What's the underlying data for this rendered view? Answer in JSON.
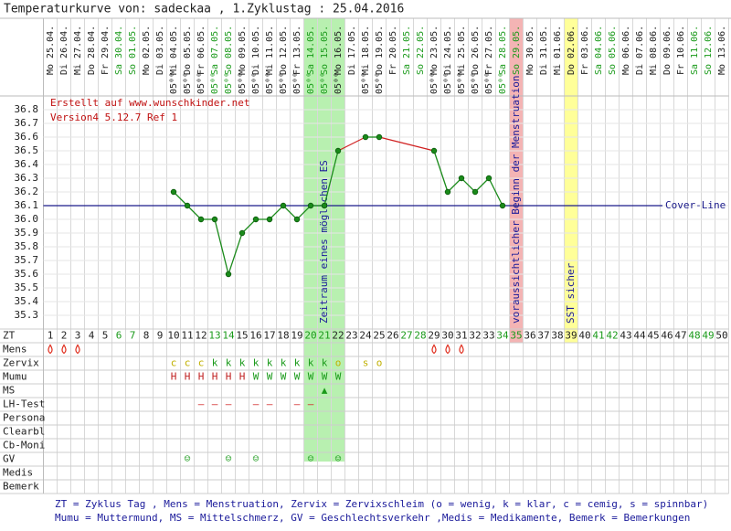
{
  "header": {
    "title": "Temperaturkurve von: sadeckaa , 1.Zyklustag : 25.04.2016"
  },
  "notes": [
    "Erstellt auf www.wunschkinder.net",
    "Version4 5.12.7 Ref 1"
  ],
  "chart_data": {
    "type": "line",
    "categories": [
      1,
      2,
      3,
      4,
      5,
      6,
      7,
      8,
      9,
      10,
      11,
      12,
      13,
      14,
      15,
      16,
      17,
      18,
      19,
      20,
      21,
      22,
      23,
      24,
      25,
      26,
      27,
      28,
      29,
      30,
      31,
      32,
      33,
      34,
      35,
      36,
      37,
      38,
      39,
      40,
      41,
      42,
      43,
      44,
      45,
      46,
      47,
      48,
      49,
      50
    ],
    "dates": [
      "Mo 25.04.",
      "Di 26.04.",
      "Mi 27.04.",
      "Do 28.04.",
      "Fr 29.04.",
      "Sa 30.04.",
      "So 01.05.",
      "Mo 02.05.",
      "Di 03.05.",
      "Mi 04.05.",
      "Do 05.05.",
      "Fr 06.05.",
      "Sa 07.05.",
      "So 08.05.",
      "Mo 09.05.",
      "Di 10.05.",
      "Mi 11.05.",
      "Do 12.05.",
      "Fr 13.05.",
      "Sa 14.05.",
      "So 15.05.",
      "Mo 16.05.",
      "Di 17.05.",
      "Mi 18.05.",
      "Do 19.05.",
      "Fr 20.05.",
      "Sa 21.05.",
      "So 22.05.",
      "Mo 23.05.",
      "Di 24.05.",
      "Mi 25.05.",
      "Do 26.05.",
      "Fr 27.05.",
      "Sa 28.05.",
      "So 29.05.",
      "Mo 30.05.",
      "Di 31.05.",
      "Mi 01.06.",
      "Do 02.06.",
      "Fr 03.06.",
      "Sa 04.06.",
      "So 05.06.",
      "Mo 06.06.",
      "Di 07.06.",
      "Mi 08.06.",
      "Do 09.06.",
      "Fr 10.06.",
      "Sa 11.06.",
      "So 12.06.",
      "Mo 13.06."
    ],
    "times": [
      null,
      null,
      null,
      null,
      null,
      null,
      null,
      null,
      null,
      "05⁰⁰",
      "05⁰⁰",
      "05⁰⁰",
      "05⁰⁰",
      "05⁰⁰",
      "05⁰⁰",
      "05⁰⁰",
      "05⁰⁰",
      "05⁰⁰",
      "05⁰⁰",
      "05⁰⁰",
      "05⁰⁰",
      "05⁰⁰",
      null,
      "05⁰⁰",
      "05⁰⁰",
      null,
      null,
      null,
      "05⁰⁰",
      "05⁰⁰",
      "05⁰⁰",
      "05⁰⁰",
      "05⁰⁰",
      "05⁰⁰",
      null,
      null,
      null,
      null,
      null,
      null,
      null,
      null,
      null,
      null,
      null,
      null,
      null,
      null,
      null,
      null
    ],
    "weekends": [
      6,
      7,
      13,
      14,
      20,
      21,
      27,
      28,
      34,
      35,
      41,
      42,
      48,
      49
    ],
    "weekend_color": "#1a9a1a",
    "values": [
      null,
      null,
      null,
      null,
      null,
      null,
      null,
      null,
      null,
      36.2,
      36.1,
      36.0,
      36.0,
      35.6,
      35.9,
      36.0,
      36.0,
      36.1,
      36.0,
      36.1,
      36.1,
      36.5,
      null,
      36.6,
      36.6,
      null,
      null,
      null,
      36.5,
      36.2,
      36.3,
      36.2,
      36.3,
      36.1,
      null,
      null,
      null,
      null,
      null,
      null,
      null,
      null,
      null,
      null,
      null,
      null,
      null,
      null,
      null,
      null
    ],
    "color": "#1a8a1a",
    "gap_color": "#d02020",
    "ylim": [
      35.2,
      36.9
    ],
    "yticks": [
      36.8,
      36.7,
      36.6,
      36.5,
      36.4,
      36.3,
      36.2,
      36.1,
      {
        "value": 36,
        "label": "36.0"
      },
      35.9,
      35.8,
      35.7,
      35.6,
      35.5,
      35.4,
      35.3
    ],
    "grid": true,
    "cover_line": {
      "value": 36.1,
      "label": "Cover-Line",
      "color": "#1a1a8a"
    },
    "bands": [
      {
        "from": 20,
        "to": 22,
        "color": "#b8f0b0",
        "label": "Zeitraum eines möglichen ES"
      },
      {
        "from": 35,
        "to": 35,
        "color": "#f4b4b4",
        "label": "voraussichtlicher Beginn der Menstruation"
      },
      {
        "from": 39,
        "to": 39,
        "color": "#ffff99",
        "label": "SST sicher"
      }
    ],
    "rows": [
      {
        "label": "ZT"
      },
      {
        "label": "Mens",
        "marks": [
          1,
          2,
          3,
          29,
          30,
          31
        ],
        "color": "#e03020"
      },
      {
        "label": "Zervix",
        "cells": {
          "10": "c",
          "11": "c",
          "12": "c",
          "13": "k",
          "14": "k",
          "15": "k",
          "16": "k",
          "17": "k",
          "18": "k",
          "19": "k",
          "20": "k",
          "21": "k",
          "22": "o",
          "24": "s",
          "25": "o"
        },
        "color_map": {
          "c": "#c0b000",
          "k": "#1a9a1a",
          "o": "#c0b000",
          "s": "#c0b000"
        }
      },
      {
        "label": "Mumu",
        "cells": {
          "10": "H",
          "11": "H",
          "12": "H",
          "13": "H",
          "14": "H",
          "15": "H",
          "16": "W",
          "17": "W",
          "18": "W",
          "19": "W",
          "20": "W",
          "21": "W",
          "22": "W"
        },
        "color_map": {
          "H": "#c02020",
          "W": "#1a9a1a"
        }
      },
      {
        "label": "MS",
        "cells": {
          "21": "▲"
        },
        "color_map": {
          "▲": "#1a9a1a"
        }
      },
      {
        "label": "LH-Test",
        "cells": {
          "12": "–",
          "13": "–",
          "14": "–",
          "16": "–",
          "17": "–",
          "19": "–",
          "20": "–"
        },
        "color_map": {
          "–": "#d02020"
        }
      },
      {
        "label": "Persona"
      },
      {
        "label": "Clearbl"
      },
      {
        "label": "Cb-Moni"
      },
      {
        "label": "GV",
        "cells": {
          "11": "☺",
          "14": "☺",
          "16": "☺",
          "20": "☺",
          "22": "☺"
        },
        "color_map": {
          "☺": "#1a9a1a"
        }
      },
      {
        "label": "Medis"
      },
      {
        "label": "Bemerk"
      }
    ]
  },
  "legend_text": [
    "ZT = Zyklus Tag , Mens = Menstruation, Zervix = Zervixschleim (o = wenig, k = klar, c = cemig, s = spinnbar)",
    "Mumu = Muttermund, MS = Mittelschmerz, GV = Geschlechtsverkehr ,Medis = Medikamente, Bemerk = Bemerkungen"
  ]
}
